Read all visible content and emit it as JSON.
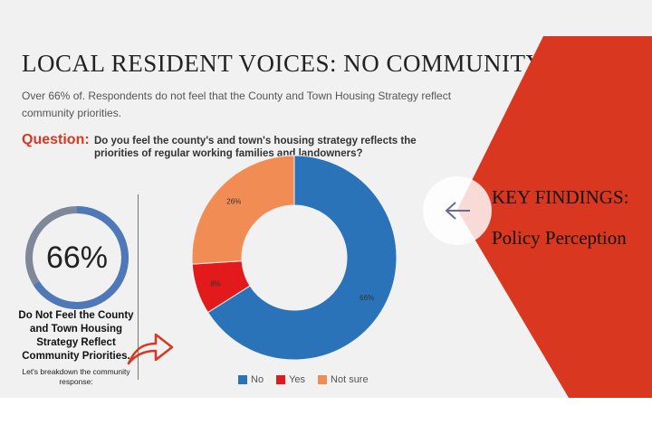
{
  "header": {
    "title": "LOCAL RESIDENT VOICES: NO COMMUNITY",
    "subtitle": "Over 66% of. Respondents do not feel that the County and Town Housing Strategy reflect community priorities."
  },
  "question": {
    "label": "Question:",
    "text": "Do you feel the county's and town's housing strategy reflects the priorities of regular working families and landowners?"
  },
  "stat": {
    "percent_label": "66%",
    "percent_value": 66,
    "description": "Do Not Feel the County and Town Housing Strategy Reflect Community Priorities.",
    "sub": "Let's breakdown the community response:"
  },
  "key_findings": {
    "title": "KEY FINDINGS:",
    "subtitle": "Policy Perception"
  },
  "colors": {
    "accent_red": "#d9371f",
    "ring_blue": "#4f78b8",
    "ring_track": "#7e8898"
  },
  "icons": {
    "back": "chevron-left-icon",
    "arrow": "curved-arrow-icon"
  },
  "chart_data": {
    "type": "pie",
    "donut": true,
    "categories": [
      "No",
      "Yes",
      "Not sure"
    ],
    "values": [
      66,
      8,
      26
    ],
    "labels": [
      "66%",
      "8%",
      "26%"
    ],
    "colors": [
      "#2a73b8",
      "#e31a1c",
      "#f28c55"
    ],
    "legend": "bottom"
  }
}
